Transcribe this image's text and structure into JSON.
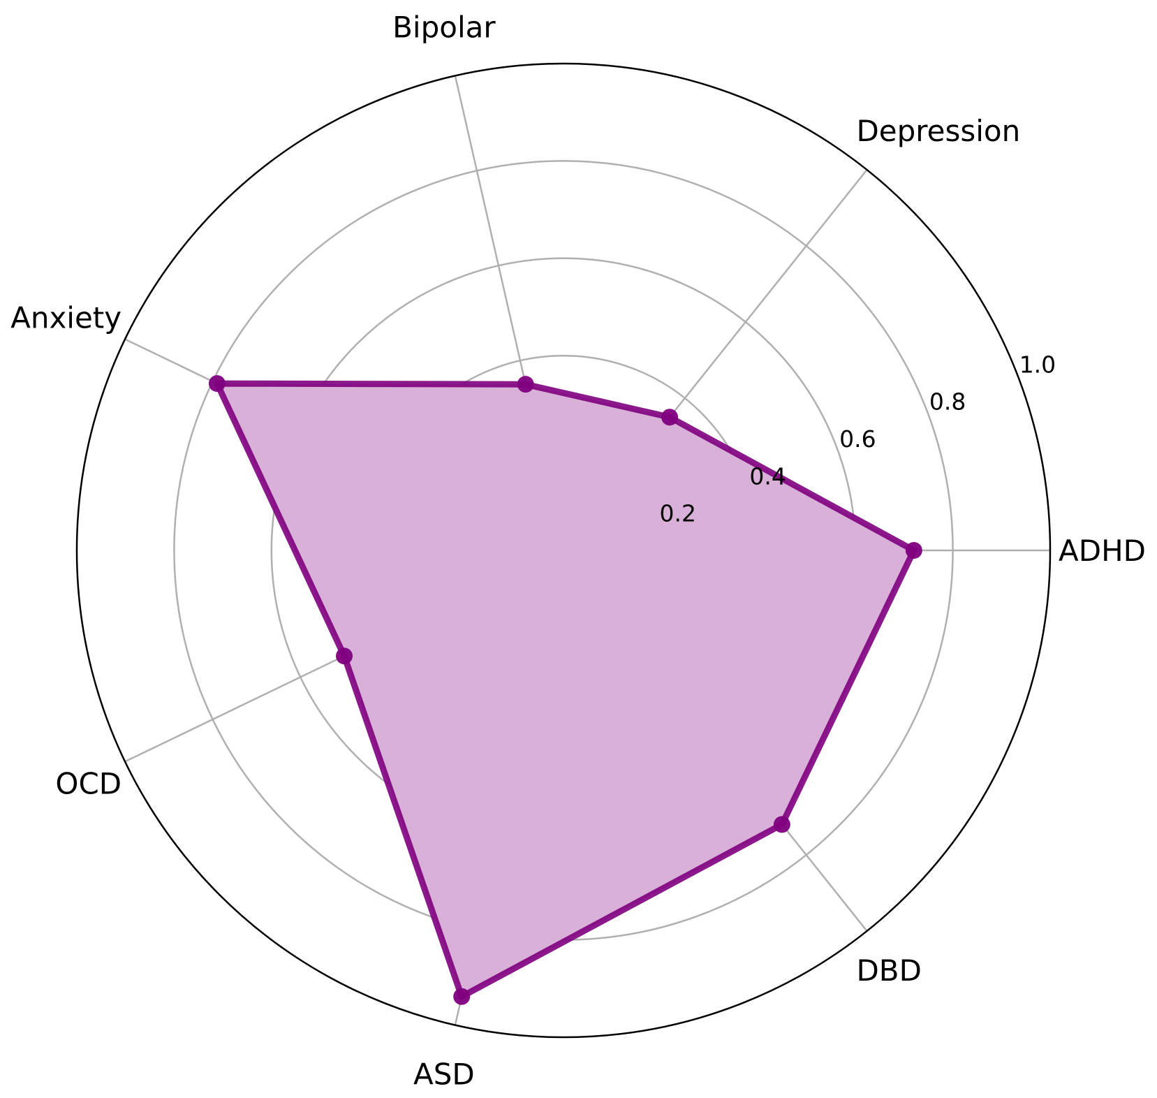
{
  "chart_data": {
    "type": "radar",
    "categories": [
      "ADHD",
      "Depression",
      "Bipolar",
      "Anxiety",
      "OCD",
      "ASD",
      "DBD"
    ],
    "series": [
      {
        "values": [
          0.72,
          0.35,
          0.35,
          0.79,
          0.5,
          0.94,
          0.72
        ]
      }
    ],
    "rticks": [
      0.2,
      0.4,
      0.6,
      0.8,
      1.0
    ],
    "rtick_labels": [
      "0.2",
      "0.4",
      "0.6",
      "0.8",
      "1.0"
    ],
    "rlim": [
      0,
      1.0
    ],
    "grid": true,
    "colors": {
      "series_line": "#800080",
      "series_fill": "#d8b0d8",
      "grid": "#b0b0b0",
      "frame": "#000000"
    }
  }
}
